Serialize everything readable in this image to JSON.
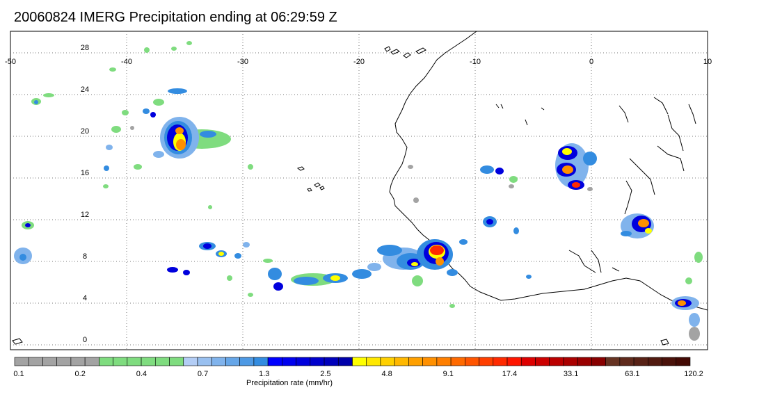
{
  "title": "20060824 IMERG Precipitation ending at 06:29:59 Z",
  "map": {
    "lon_range": [
      -50,
      10
    ],
    "lat_range": [
      -1,
      31
    ],
    "lon_ticks": [
      -50,
      -40,
      -30,
      -20,
      -10,
      0,
      10
    ],
    "lon_tick_labels": [
      "-50",
      "-40",
      "-30",
      "-20",
      "-10",
      "0",
      "10"
    ],
    "lat_ticks": [
      28,
      24,
      20,
      16,
      12,
      8,
      4,
      0
    ],
    "lat_tick_labels": [
      "28",
      "24",
      "20",
      "16",
      "12",
      "8",
      "4",
      "0"
    ],
    "gridlines": true,
    "gridline_style": "dotted"
  },
  "colorbar": {
    "label": "Precipitation rate (mm/hr)",
    "tick_labels": [
      "0.1",
      "0.2",
      "0.4",
      "0.7",
      "1.3",
      "2.5",
      "4.8",
      "9.1",
      "17.4",
      "33.1",
      "63.1",
      "120.2"
    ],
    "bin_colors": [
      "#a3a3a3",
      "#a3a3a3",
      "#a3a3a3",
      "#a3a3a3",
      "#a3a3a3",
      "#a3a3a3",
      "#7fdc7f",
      "#7fdc7f",
      "#7fdc7f",
      "#7fdc7f",
      "#7fdc7f",
      "#7fdc7f",
      "#b3cdf5",
      "#99c0f0",
      "#80b3ec",
      "#66a6e8",
      "#4d99e4",
      "#338ce0",
      "#0000ff",
      "#0000ee",
      "#0000dd",
      "#0000cc",
      "#0000bb",
      "#0000aa",
      "#ffff00",
      "#ffe800",
      "#ffd000",
      "#ffb800",
      "#ffa000",
      "#ff9000",
      "#ff7f00",
      "#ff6a00",
      "#ff5500",
      "#ff3f00",
      "#ff2a00",
      "#ff1500",
      "#dd0000",
      "#cc0000",
      "#bb0000",
      "#aa0000",
      "#990000",
      "#880000",
      "#663322",
      "#5f2a1c",
      "#582216",
      "#511a10",
      "#4a120a",
      "#430a04"
    ]
  },
  "precip_colors": {
    "light_gray": "#a3a3a3",
    "light_green": "#7fdc7f",
    "light_blue": "#80b3ec",
    "mid_blue": "#338ce0",
    "dark_blue": "#0000dd",
    "yellow": "#ffff00",
    "orange": "#ff9000",
    "red": "#ff2a00"
  }
}
